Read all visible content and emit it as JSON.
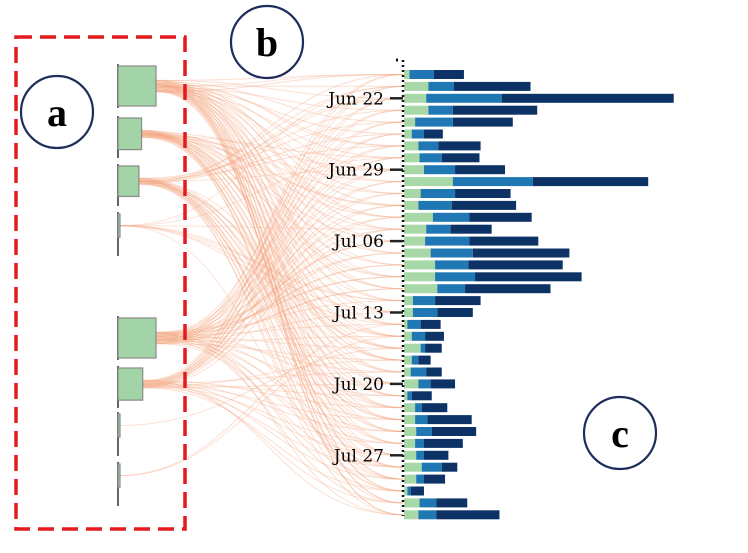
{
  "panels": [
    {
      "id": "a",
      "label": "a"
    },
    {
      "id": "b",
      "label": "b"
    },
    {
      "id": "c",
      "label": "c"
    }
  ],
  "colors": {
    "bar_light": "#a8d8a8",
    "bar_mid": "#1f78b4",
    "bar_dark": "#0d3366",
    "node_fill": "#a3d4a7",
    "link": "#f4a582",
    "highlight_box": "#e41a1c",
    "circle_stroke": "#1f2d5c"
  },
  "chart_data": {
    "type": "bar",
    "orientation": "horizontal",
    "stacked": true,
    "series_count": 3,
    "day_labels": [
      "Jun 22",
      "Jun 29",
      "Jul 06",
      "Jul 13",
      "Jul 20",
      "Jul 27"
    ],
    "days": [
      [
        0.5,
        2.2,
        2.7
      ],
      [
        2.2,
        2.3,
        6.9
      ],
      [
        2.0,
        6.8,
        15.5
      ],
      [
        2.2,
        2.2,
        7.6
      ],
      [
        1.0,
        3.4,
        5.4
      ],
      [
        0.7,
        1.1,
        1.7
      ],
      [
        1.3,
        1.8,
        3.8
      ],
      [
        1.4,
        2.0,
        3.4
      ],
      [
        1.8,
        2.8,
        4.5
      ],
      [
        4.4,
        7.2,
        10.4
      ],
      [
        1.5,
        3.1,
        5.0
      ],
      [
        1.3,
        3.0,
        5.8
      ],
      [
        2.6,
        3.3,
        5.6
      ],
      [
        2.0,
        2.2,
        3.7
      ],
      [
        1.9,
        4.0,
        6.2
      ],
      [
        2.4,
        3.8,
        8.7
      ],
      [
        2.8,
        3.0,
        8.5
      ],
      [
        2.8,
        3.6,
        9.6
      ],
      [
        3.0,
        2.5,
        7.7
      ],
      [
        0.8,
        2.0,
        4.1
      ],
      [
        0.8,
        2.2,
        3.2
      ],
      [
        0.3,
        1.2,
        1.8
      ],
      [
        0.7,
        1.2,
        1.7
      ],
      [
        1.5,
        0.4,
        1.5
      ],
      [
        0.7,
        0.6,
        1.1
      ],
      [
        0.6,
        1.4,
        1.4
      ],
      [
        1.3,
        1.1,
        2.2
      ],
      [
        0.3,
        0.4,
        1.8
      ],
      [
        1.0,
        0.6,
        2.3
      ],
      [
        1.0,
        1.1,
        4.0
      ],
      [
        1.1,
        1.4,
        4.0
      ],
      [
        1.0,
        0.8,
        3.5
      ],
      [
        1.1,
        0.7,
        2.2
      ],
      [
        1.6,
        1.8,
        1.4
      ],
      [
        1.1,
        0.7,
        1.9
      ],
      [
        0.3,
        0.3,
        1.2
      ],
      [
        1.4,
        1.5,
        2.8
      ],
      [
        1.3,
        1.6,
        5.7
      ]
    ],
    "nodes": [
      {
        "size": 1.0
      },
      {
        "size": 0.62
      },
      {
        "size": 0.55
      },
      {
        "size": 0.05
      },
      {
        "size": 1.0
      },
      {
        "size": 0.65
      },
      {
        "size": 0.04
      },
      {
        "size": 0.04
      }
    ]
  }
}
